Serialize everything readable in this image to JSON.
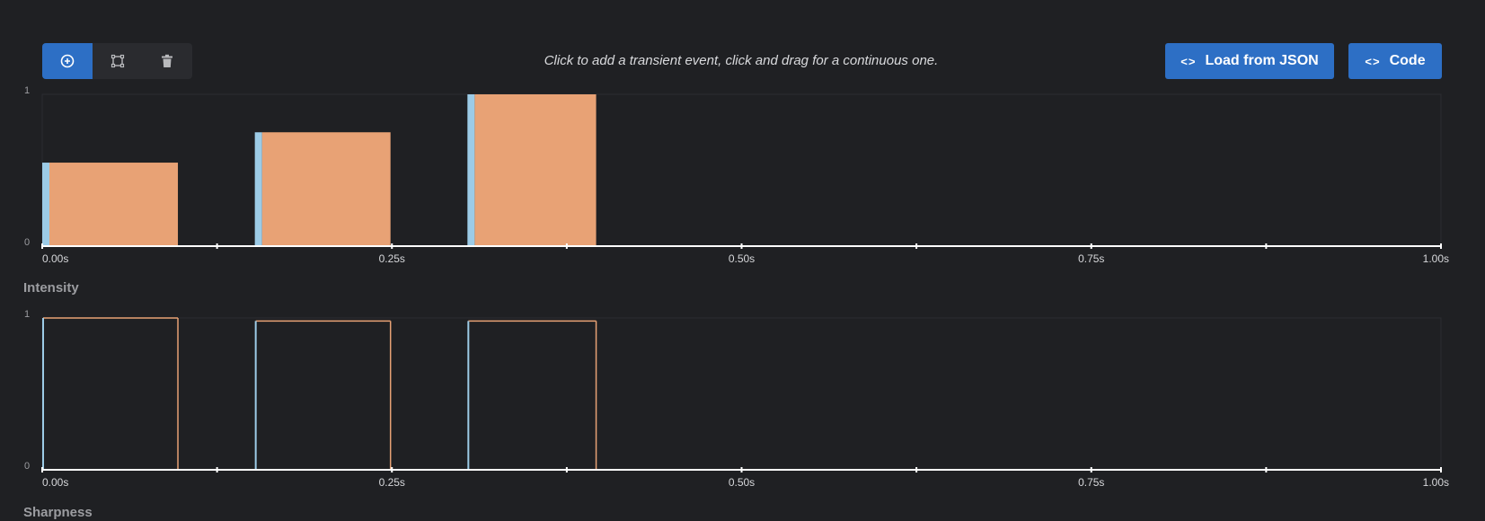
{
  "toolbar": {
    "tools": [
      {
        "name": "add-event-tool",
        "icon": "plus-circle-icon",
        "active": true
      },
      {
        "name": "select-tool",
        "icon": "select-square-icon",
        "active": false
      },
      {
        "name": "delete-tool",
        "icon": "trash-icon",
        "active": false
      }
    ],
    "hint": "Click to add a transient event, click and drag for a continuous one.",
    "load_json_label": "Load from JSON",
    "code_label": "Code"
  },
  "colors": {
    "accent": "#2d6fc5",
    "event_fill": "#e8a275",
    "transient": "#9ccbe6",
    "background": "#1f2023"
  },
  "tracks": {
    "intensity": {
      "label": "Intensity"
    },
    "sharpness": {
      "label": "Sharpness"
    }
  },
  "chart_data": [
    {
      "type": "bar",
      "title": "",
      "xlabel": "Intensity",
      "ylabel": "",
      "xlim": [
        0,
        1
      ],
      "ylim": [
        0,
        1
      ],
      "y_tick_labels": [
        "0",
        "1"
      ],
      "x_tick_labels": [
        "0.00s",
        "0.25s",
        "0.50s",
        "0.75s",
        "1.00s"
      ],
      "events": [
        {
          "start": 0.0,
          "end": 0.097,
          "value": 0.55
        },
        {
          "start": 0.152,
          "end": 0.249,
          "value": 0.75
        },
        {
          "start": 0.304,
          "end": 0.396,
          "value": 1.0
        }
      ]
    },
    {
      "type": "bar",
      "title": "",
      "xlabel": "Sharpness",
      "ylabel": "",
      "xlim": [
        0,
        1
      ],
      "ylim": [
        0,
        1
      ],
      "y_tick_labels": [
        "0",
        "1"
      ],
      "x_tick_labels": [
        "0.00s",
        "0.25s",
        "0.50s",
        "0.75s",
        "1.00s"
      ],
      "events": [
        {
          "start": 0.0,
          "end": 0.097,
          "value": 1.0
        },
        {
          "start": 0.152,
          "end": 0.249,
          "value": 0.98
        },
        {
          "start": 0.304,
          "end": 0.396,
          "value": 0.98
        }
      ]
    }
  ]
}
